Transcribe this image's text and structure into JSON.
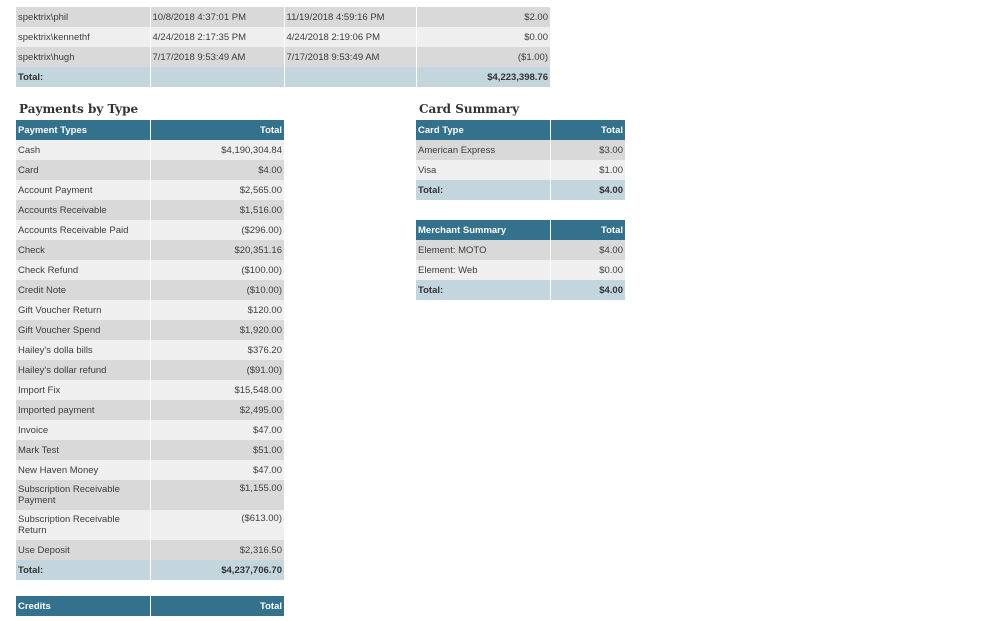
{
  "users_table": {
    "rows": [
      {
        "user": "spektrix\\phil",
        "first": "10/8/2018 4:37:01 PM",
        "last": "11/19/2018 4:59:16 PM",
        "total": "$2.00"
      },
      {
        "user": "spektrix\\kennethf",
        "first": "4/24/2018 2:17:35 PM",
        "last": "4/24/2018 2:19:06 PM",
        "total": "$0.00"
      },
      {
        "user": "spektrix\\hugh",
        "first": "7/17/2018 9:53:49 AM",
        "last": "7/17/2018 9:53:49 AM",
        "total": "($1.00)"
      }
    ],
    "total_label": "Total:",
    "total_value": "$4,223,398.76"
  },
  "payments_by_type": {
    "heading": "Payments by Type",
    "col_type": "Payment Types",
    "col_total": "Total",
    "rows": [
      {
        "label": "Cash",
        "value": "$4,190,304.84"
      },
      {
        "label": "Card",
        "value": "$4.00"
      },
      {
        "label": "Account Payment",
        "value": "$2,565.00"
      },
      {
        "label": "Accounts Receivable",
        "value": "$1,516.00"
      },
      {
        "label": "Accounts Receivable Paid",
        "value": "($296.00)"
      },
      {
        "label": "Check",
        "value": "$20,351.16"
      },
      {
        "label": "Check Refund",
        "value": "($100.00)"
      },
      {
        "label": "Credit Note",
        "value": "($10.00)"
      },
      {
        "label": "Gift Voucher Return",
        "value": "$120.00"
      },
      {
        "label": "Gift Voucher Spend",
        "value": "$1,920.00"
      },
      {
        "label": "Hailey's dolla bills",
        "value": "$376.20"
      },
      {
        "label": "Hailey's dollar refund",
        "value": "($91.00)"
      },
      {
        "label": "Import Fix",
        "value": "$15,548.00"
      },
      {
        "label": "Imported payment",
        "value": "$2,495.00"
      },
      {
        "label": "Invoice",
        "value": "$47.00"
      },
      {
        "label": "Mark Test",
        "value": "$51.00"
      },
      {
        "label": "New Haven Money",
        "value": "$47.00"
      },
      {
        "label": "Subscription Receivable Payment",
        "value": "$1,155.00"
      },
      {
        "label": "Subscription Receivable Return",
        "value": "($613.00)"
      },
      {
        "label": "Use Deposit",
        "value": "$2,316.50"
      }
    ],
    "total_label": "Total:",
    "total_value": "$4,237,706.70"
  },
  "credits": {
    "col_label": "Credits",
    "col_total": "Total"
  },
  "card_summary": {
    "heading": "Card Summary",
    "col_type": "Card Type",
    "col_total": "Total",
    "rows": [
      {
        "label": "American Express",
        "value": "$3.00"
      },
      {
        "label": "Visa",
        "value": "$1.00"
      }
    ],
    "total_label": "Total:",
    "total_value": "$4.00"
  },
  "merchant_summary": {
    "col_label": "Merchant Summary",
    "col_total": "Total",
    "rows": [
      {
        "label": "Element: MOTO",
        "value": "$4.00"
      },
      {
        "label": "Element: Web",
        "value": "$0.00"
      }
    ],
    "total_label": "Total:",
    "total_value": "$4.00"
  }
}
